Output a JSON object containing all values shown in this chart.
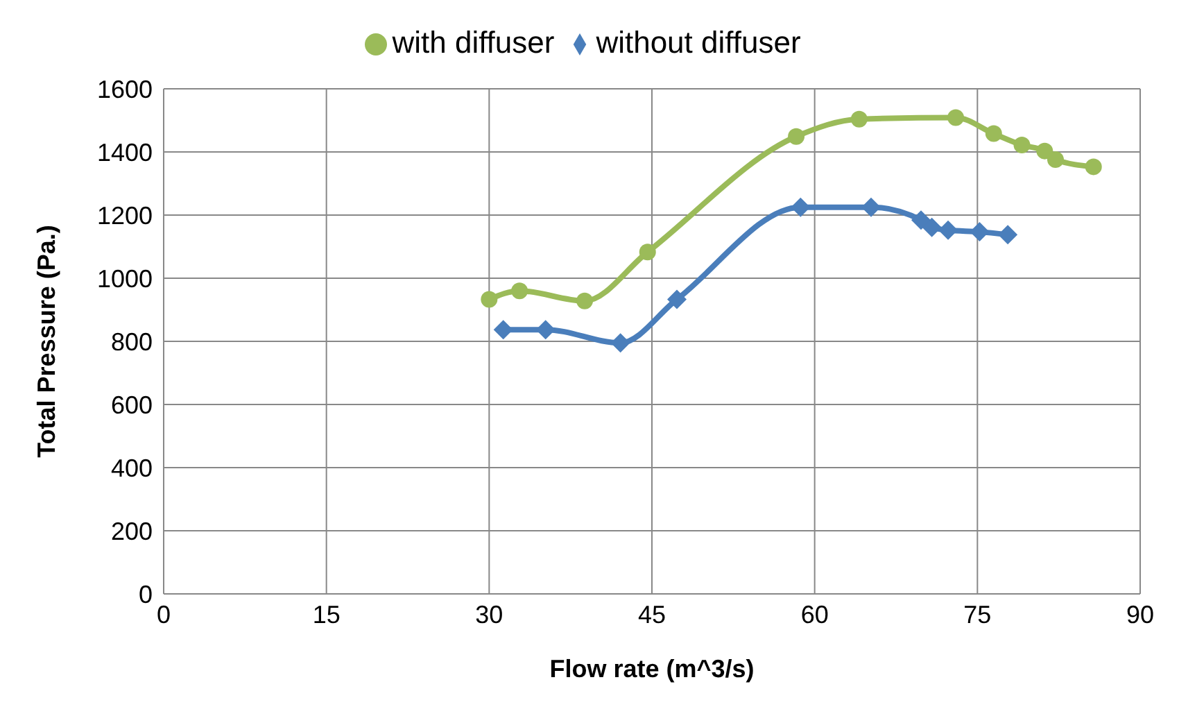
{
  "chart_data": {
    "type": "line",
    "xlabel": "Flow rate (m^3/s)",
    "ylabel": "Total Pressure (Pa.)",
    "xlim": [
      0,
      90
    ],
    "xticks": [
      0,
      15,
      30,
      45,
      60,
      75,
      90
    ],
    "ylim": [
      0,
      1600
    ],
    "yticks": [
      0,
      200,
      400,
      600,
      800,
      1000,
      1200,
      1400,
      1600
    ],
    "grid": true,
    "legend": "top",
    "series": [
      {
        "name": "without diffuser",
        "color": "#4a7ebb",
        "marker": "diamond",
        "x": [
          31.3,
          35.2,
          42.1,
          47.3,
          58.7,
          65.2,
          69.8,
          70.8,
          72.3,
          75.2,
          77.8
        ],
        "values": [
          837,
          837,
          795,
          933,
          1225,
          1225,
          1184,
          1161,
          1152,
          1147,
          1138
        ]
      },
      {
        "name": "with diffuser",
        "color": "#9bbb59",
        "marker": "circle",
        "x": [
          30.0,
          32.8,
          38.8,
          44.6,
          58.3,
          64.1,
          73.0,
          76.5,
          79.1,
          81.2,
          82.2,
          85.7
        ],
        "values": [
          933,
          960,
          928,
          1083,
          1449,
          1504,
          1509,
          1458,
          1422,
          1403,
          1376,
          1353
        ]
      }
    ]
  }
}
